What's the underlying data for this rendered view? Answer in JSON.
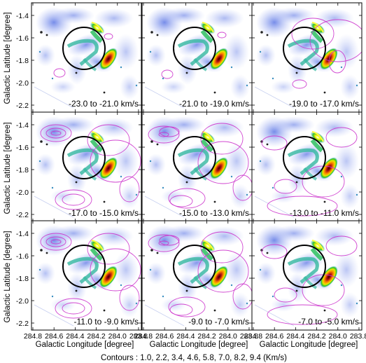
{
  "figure": {
    "ylabel": "Galactic Latitude [degree]",
    "xlabel": "Galactic Longitude [degree]",
    "caption": "Contours : 1.0, 2.2, 3.4, 4.6, 5.8, 7.0, 8.2, 9.4 (Km/s)",
    "x_ticks": [
      "284.8",
      "284.6",
      "284.4",
      "284.2",
      "284.0",
      "283.8"
    ],
    "y_ticks": [
      "-1.4",
      "-1.6",
      "-1.8",
      "-2.0",
      "-2.2"
    ],
    "contour_color": "#cc33cc",
    "circle_color": "#000000",
    "panels": [
      {
        "vmin": "-23.0",
        "vmax": "-21.0",
        "unit": "km/s",
        "contour_level": 0
      },
      {
        "vmin": "-21.0",
        "vmax": "-19.0",
        "unit": "km/s",
        "contour_level": 0
      },
      {
        "vmin": "-19.0",
        "vmax": "-17.0",
        "unit": "km/s",
        "contour_level": 1
      },
      {
        "vmin": "-17.0",
        "vmax": "-15.0",
        "unit": "km/s",
        "contour_level": 3
      },
      {
        "vmin": "-15.0",
        "vmax": "-13.0",
        "unit": "km/s",
        "contour_level": 3
      },
      {
        "vmin": "-13.0",
        "vmax": "-11.0",
        "unit": "km/s",
        "contour_level": 2
      },
      {
        "vmin": "-11.0",
        "vmax": "-9.0",
        "unit": "km/s",
        "contour_level": 3
      },
      {
        "vmin": "-9.0",
        "vmax": "-7.0",
        "unit": "km/s",
        "contour_level": 3
      },
      {
        "vmin": "-7.0",
        "vmax": "-5.0",
        "unit": "km/s",
        "contour_level": 2
      }
    ]
  }
}
